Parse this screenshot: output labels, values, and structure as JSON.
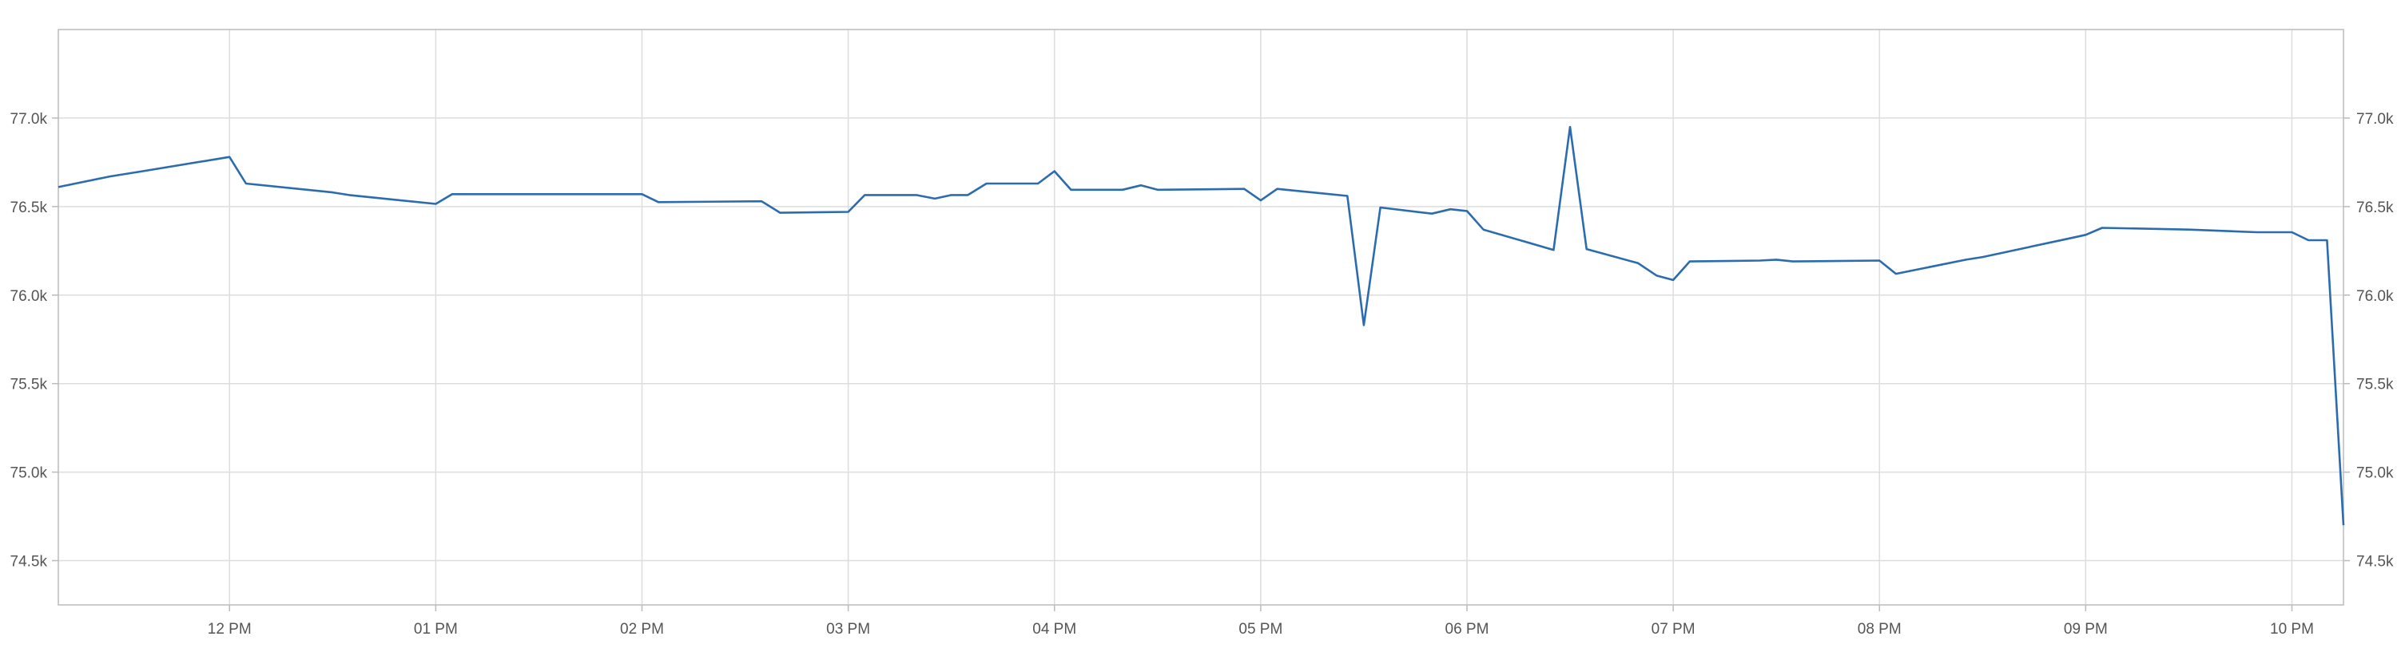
{
  "chart_data": {
    "type": "line",
    "title": "",
    "xlabel": "",
    "ylabel": "",
    "grid": true,
    "x_ticks": [
      {
        "t": 12.0,
        "label": "12 PM"
      },
      {
        "t": 13.0,
        "label": "01 PM"
      },
      {
        "t": 14.0,
        "label": "02 PM"
      },
      {
        "t": 15.0,
        "label": "03 PM"
      },
      {
        "t": 16.0,
        "label": "04 PM"
      },
      {
        "t": 17.0,
        "label": "05 PM"
      },
      {
        "t": 18.0,
        "label": "06 PM"
      },
      {
        "t": 19.0,
        "label": "07 PM"
      },
      {
        "t": 20.0,
        "label": "08 PM"
      },
      {
        "t": 21.0,
        "label": "09 PM"
      },
      {
        "t": 22.0,
        "label": "10 PM"
      }
    ],
    "y_ticks": [
      {
        "v": 74500,
        "label": "74.5k"
      },
      {
        "v": 75000,
        "label": "75.0k"
      },
      {
        "v": 75500,
        "label": "75.5k"
      },
      {
        "v": 76000,
        "label": "76.0k"
      },
      {
        "v": 76500,
        "label": "76.5k"
      },
      {
        "v": 77000,
        "label": "77.0k"
      }
    ],
    "xlim": [
      11.17,
      22.25
    ],
    "ylim": [
      74250,
      77500
    ],
    "series": [
      {
        "color": "#2b6cb0",
        "points": [
          [
            11.17,
            76610
          ],
          [
            11.42,
            76670
          ],
          [
            11.58,
            76700
          ],
          [
            12.0,
            76780
          ],
          [
            12.08,
            76630
          ],
          [
            12.5,
            76580
          ],
          [
            12.58,
            76565
          ],
          [
            13.0,
            76515
          ],
          [
            13.08,
            76570
          ],
          [
            13.5,
            76570
          ],
          [
            14.0,
            76570
          ],
          [
            14.08,
            76525
          ],
          [
            14.58,
            76530
          ],
          [
            14.67,
            76465
          ],
          [
            15.0,
            76470
          ],
          [
            15.08,
            76565
          ],
          [
            15.33,
            76565
          ],
          [
            15.42,
            76545
          ],
          [
            15.5,
            76565
          ],
          [
            15.58,
            76565
          ],
          [
            15.67,
            76630
          ],
          [
            15.92,
            76630
          ],
          [
            16.0,
            76700
          ],
          [
            16.08,
            76595
          ],
          [
            16.33,
            76595
          ],
          [
            16.42,
            76620
          ],
          [
            16.5,
            76595
          ],
          [
            16.92,
            76600
          ],
          [
            17.0,
            76535
          ],
          [
            17.08,
            76600
          ],
          [
            17.42,
            76560
          ],
          [
            17.5,
            75830
          ],
          [
            17.58,
            76495
          ],
          [
            17.83,
            76460
          ],
          [
            17.92,
            76485
          ],
          [
            18.0,
            76475
          ],
          [
            18.08,
            76370
          ],
          [
            18.42,
            76255
          ],
          [
            18.5,
            76950
          ],
          [
            18.58,
            76260
          ],
          [
            18.83,
            76180
          ],
          [
            18.92,
            76110
          ],
          [
            19.0,
            76085
          ],
          [
            19.08,
            76190
          ],
          [
            19.42,
            76195
          ],
          [
            19.5,
            76200
          ],
          [
            19.58,
            76190
          ],
          [
            20.0,
            76195
          ],
          [
            20.08,
            76120
          ],
          [
            20.42,
            76200
          ],
          [
            20.5,
            76215
          ],
          [
            20.92,
            76320
          ],
          [
            21.0,
            76340
          ],
          [
            21.08,
            76380
          ],
          [
            21.5,
            76370
          ],
          [
            21.83,
            76355
          ],
          [
            22.0,
            76355
          ],
          [
            22.08,
            76310
          ],
          [
            22.17,
            76310
          ],
          [
            22.25,
            74700
          ]
        ]
      }
    ]
  }
}
